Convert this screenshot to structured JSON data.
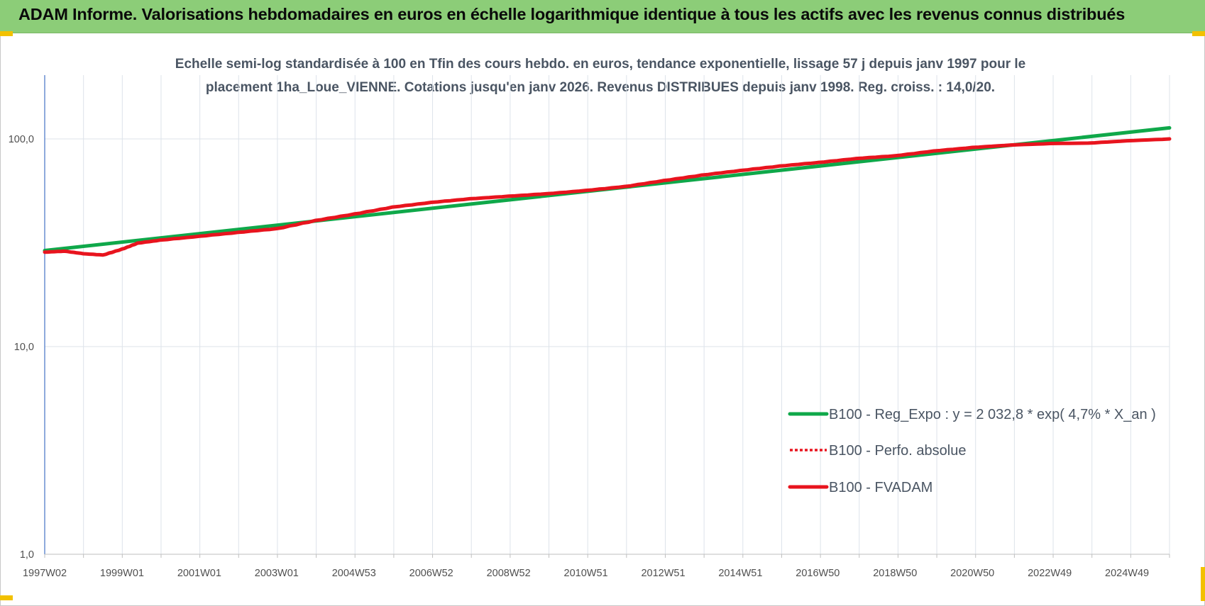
{
  "header": {
    "title": "ADAM Informe. Valorisations hebdomadaires en euros en échelle logarithmique identique à tous les actifs avec les revenus connus distribués"
  },
  "chart_data": {
    "type": "line",
    "subtitle_line1": "Echelle semi-log standardisée à 100 en Tfin des cours hebdo. en euros, tendance exponentielle, lissage 57 j depuis janv 1997 pour le",
    "subtitle_line2": "placement 1ha_Loue_VIENNE. Cotations jusqu'en janv 2026.  Revenus DISTRIBUES depuis janv 1998.  Reg. croiss. : 14,0/20.",
    "y_scale": "log",
    "ylim": [
      1,
      200
    ],
    "y_ticks": [
      {
        "value": 1,
        "label": "1,0"
      },
      {
        "value": 10,
        "label": "10,0"
      },
      {
        "value": 100,
        "label": "100,0"
      }
    ],
    "x_range": [
      1997.0,
      2026.1
    ],
    "x_ticks": [
      {
        "label": "1997W02",
        "x": 1997.0
      },
      {
        "label": "1999W01",
        "x": 1999.0
      },
      {
        "label": "2001W01",
        "x": 2001.0
      },
      {
        "label": "2003W01",
        "x": 2003.0
      },
      {
        "label": "2004W53",
        "x": 2005.0
      },
      {
        "label": "2006W52",
        "x": 2007.0
      },
      {
        "label": "2008W52",
        "x": 2009.0
      },
      {
        "label": "2010W51",
        "x": 2011.0
      },
      {
        "label": "2012W51",
        "x": 2013.0
      },
      {
        "label": "2014W51",
        "x": 2015.0
      },
      {
        "label": "2016W50",
        "x": 2017.0
      },
      {
        "label": "2018W50",
        "x": 2019.0
      },
      {
        "label": "2020W50",
        "x": 2021.0
      },
      {
        "label": "2022W49",
        "x": 2023.0
      },
      {
        "label": "2024W49",
        "x": 2025.0
      }
    ],
    "grid": true,
    "legend_position": "bottom-right",
    "series": [
      {
        "name": "B100 - Reg_Expo : y = 2 032,8 * exp( 4,7% *  X_an )",
        "color": "#0fa84a",
        "style": "solid",
        "x": [
          1997.0,
          2026.1
        ],
        "y": [
          29.0,
          113.0
        ]
      },
      {
        "name": "B100 - Perfo. absolue",
        "color": "#e8141e",
        "style": "dotted",
        "x": [],
        "y": []
      },
      {
        "name": "B100 - FVADAM",
        "color": "#e8141e",
        "style": "solid",
        "x": [
          1997.0,
          1997.5,
          1998.0,
          1998.5,
          1999.0,
          1999.4,
          2000.0,
          2001.0,
          2002.0,
          2003.0,
          2004.0,
          2005.0,
          2006.0,
          2007.0,
          2008.0,
          2009.0,
          2010.0,
          2011.0,
          2012.0,
          2013.0,
          2014.0,
          2015.0,
          2016.0,
          2017.0,
          2018.0,
          2019.0,
          2020.0,
          2021.0,
          2022.0,
          2023.0,
          2024.0,
          2025.0,
          2026.1
        ],
        "y": [
          28.5,
          28.8,
          28.0,
          27.6,
          29.5,
          31.5,
          32.6,
          34.0,
          35.5,
          37.0,
          40.5,
          43.5,
          47.0,
          49.5,
          51.5,
          53.0,
          54.5,
          56.5,
          59.0,
          63.0,
          67.0,
          70.5,
          74.0,
          77.0,
          80.5,
          83.0,
          87.5,
          91.0,
          93.5,
          95.0,
          95.5,
          98.0,
          100.0
        ]
      }
    ]
  }
}
